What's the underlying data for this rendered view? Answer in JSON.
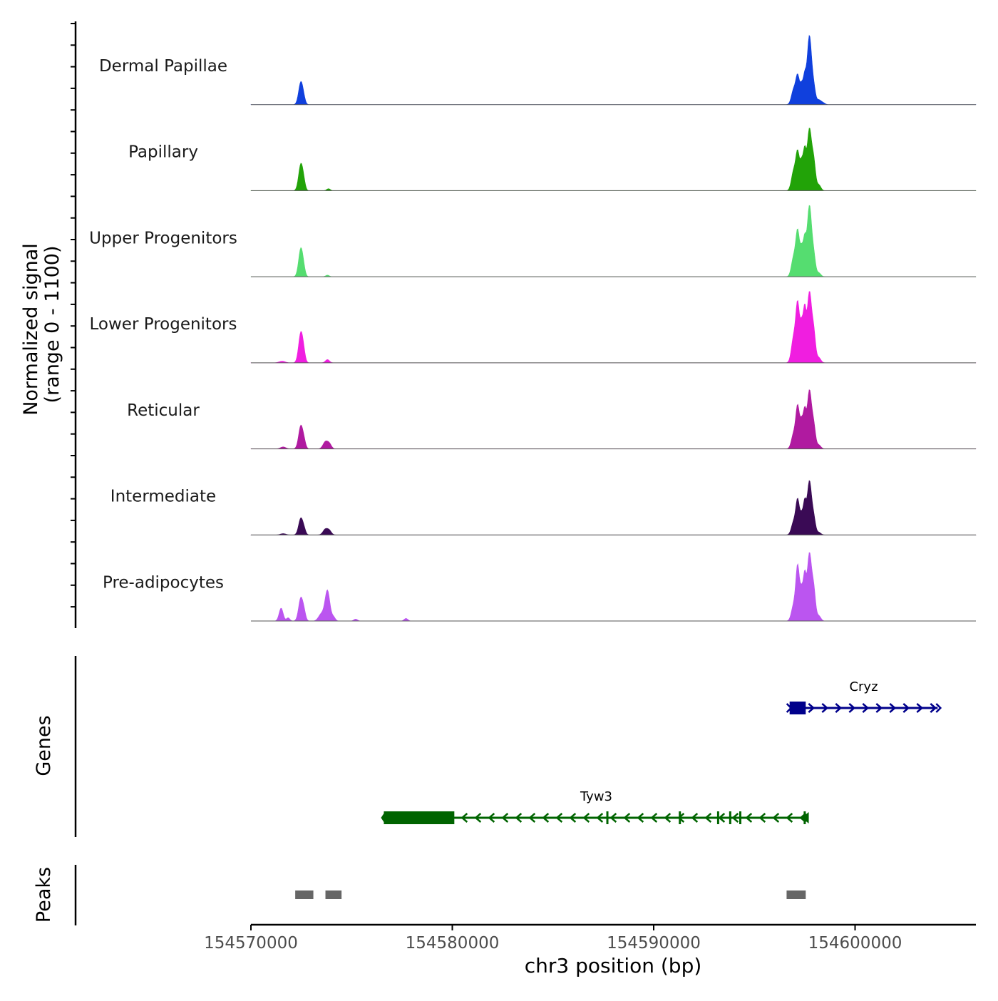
{
  "chart_data": {
    "type": "area",
    "title": "",
    "chromosome": "chr3",
    "xlabel": "chr3 position (bp)",
    "xlim": [
      154570000,
      154606000
    ],
    "xticks": [
      154570000,
      154580000,
      154590000,
      154600000
    ],
    "xtick_labels": [
      "154570000",
      "154580000",
      "154590000",
      "154600000"
    ],
    "ylabel": "Normalized signal",
    "ylabel_range": "(range 0 - 1100)",
    "ylim": [
      0,
      1100
    ],
    "series": [
      {
        "name": "Dermal Papillae",
        "color": "#1040dd",
        "peaks": [
          {
            "center": 154572480,
            "width": 110,
            "height": 350
          },
          {
            "center": 154572630,
            "width": 80,
            "height": 50
          },
          {
            "center": 154596950,
            "width": 110,
            "height": 230
          },
          {
            "center": 154597150,
            "width": 90,
            "height": 420
          },
          {
            "center": 154597350,
            "width": 80,
            "height": 290
          },
          {
            "center": 154597500,
            "width": 70,
            "height": 360
          },
          {
            "center": 154597730,
            "width": 110,
            "height": 1060
          },
          {
            "center": 154597950,
            "width": 90,
            "height": 240
          },
          {
            "center": 154598200,
            "width": 100,
            "height": 70
          },
          {
            "center": 154598400,
            "width": 100,
            "height": 30
          }
        ]
      },
      {
        "name": "Papillary",
        "color": "#22a308",
        "peaks": [
          {
            "center": 154572480,
            "width": 110,
            "height": 410
          },
          {
            "center": 154572630,
            "width": 80,
            "height": 80
          },
          {
            "center": 154573850,
            "width": 90,
            "height": 30
          },
          {
            "center": 154596950,
            "width": 110,
            "height": 300
          },
          {
            "center": 154597150,
            "width": 90,
            "height": 560
          },
          {
            "center": 154597350,
            "width": 80,
            "height": 420
          },
          {
            "center": 154597500,
            "width": 70,
            "height": 520
          },
          {
            "center": 154597730,
            "width": 110,
            "height": 950
          },
          {
            "center": 154597950,
            "width": 90,
            "height": 420
          },
          {
            "center": 154598200,
            "width": 100,
            "height": 90
          }
        ]
      },
      {
        "name": "Upper Progenitors",
        "color": "#55dd70",
        "peaks": [
          {
            "center": 154572480,
            "width": 110,
            "height": 440
          },
          {
            "center": 154572630,
            "width": 80,
            "height": 60
          },
          {
            "center": 154573800,
            "width": 90,
            "height": 25
          },
          {
            "center": 154596950,
            "width": 110,
            "height": 300
          },
          {
            "center": 154597150,
            "width": 90,
            "height": 670
          },
          {
            "center": 154597350,
            "width": 80,
            "height": 410
          },
          {
            "center": 154597500,
            "width": 70,
            "height": 480
          },
          {
            "center": 154597730,
            "width": 110,
            "height": 1100
          },
          {
            "center": 154597950,
            "width": 90,
            "height": 300
          },
          {
            "center": 154598200,
            "width": 100,
            "height": 60
          }
        ]
      },
      {
        "name": "Lower Progenitors",
        "color": "#f01ee0",
        "peaks": [
          {
            "center": 154571550,
            "width": 150,
            "height": 25
          },
          {
            "center": 154572480,
            "width": 110,
            "height": 470
          },
          {
            "center": 154572630,
            "width": 80,
            "height": 90
          },
          {
            "center": 154573800,
            "width": 100,
            "height": 50
          },
          {
            "center": 154596950,
            "width": 110,
            "height": 390
          },
          {
            "center": 154597150,
            "width": 90,
            "height": 870
          },
          {
            "center": 154597350,
            "width": 80,
            "height": 560
          },
          {
            "center": 154597500,
            "width": 70,
            "height": 700
          },
          {
            "center": 154597730,
            "width": 110,
            "height": 1090
          },
          {
            "center": 154597950,
            "width": 90,
            "height": 440
          },
          {
            "center": 154598200,
            "width": 100,
            "height": 80
          }
        ]
      },
      {
        "name": "Reticular",
        "color": "#b01aa0",
        "peaks": [
          {
            "center": 154571600,
            "width": 130,
            "height": 30
          },
          {
            "center": 154572480,
            "width": 110,
            "height": 360
          },
          {
            "center": 154572650,
            "width": 80,
            "height": 80
          },
          {
            "center": 154573700,
            "width": 120,
            "height": 110
          },
          {
            "center": 154573900,
            "width": 100,
            "height": 70
          },
          {
            "center": 154596950,
            "width": 110,
            "height": 230
          },
          {
            "center": 154597150,
            "width": 90,
            "height": 630
          },
          {
            "center": 154597350,
            "width": 80,
            "height": 400
          },
          {
            "center": 154597500,
            "width": 70,
            "height": 490
          },
          {
            "center": 154597730,
            "width": 110,
            "height": 900
          },
          {
            "center": 154597950,
            "width": 90,
            "height": 330
          },
          {
            "center": 154598200,
            "width": 100,
            "height": 60
          }
        ]
      },
      {
        "name": "Intermediate",
        "color": "#3a0a55",
        "peaks": [
          {
            "center": 154571600,
            "width": 130,
            "height": 20
          },
          {
            "center": 154572480,
            "width": 110,
            "height": 260
          },
          {
            "center": 154572650,
            "width": 80,
            "height": 60
          },
          {
            "center": 154573700,
            "width": 120,
            "height": 90
          },
          {
            "center": 154573900,
            "width": 100,
            "height": 60
          },
          {
            "center": 154596950,
            "width": 110,
            "height": 200
          },
          {
            "center": 154597150,
            "width": 90,
            "height": 520
          },
          {
            "center": 154597350,
            "width": 80,
            "height": 290
          },
          {
            "center": 154597500,
            "width": 70,
            "height": 430
          },
          {
            "center": 154597730,
            "width": 110,
            "height": 830
          },
          {
            "center": 154597950,
            "width": 90,
            "height": 240
          },
          {
            "center": 154598200,
            "width": 100,
            "height": 40
          }
        ]
      },
      {
        "name": "Pre-adipocytes",
        "color": "#bb55f0",
        "peaks": [
          {
            "center": 154571500,
            "width": 100,
            "height": 200
          },
          {
            "center": 154571850,
            "width": 80,
            "height": 50
          },
          {
            "center": 154572480,
            "width": 110,
            "height": 360
          },
          {
            "center": 154572650,
            "width": 80,
            "height": 100
          },
          {
            "center": 154573500,
            "width": 140,
            "height": 110
          },
          {
            "center": 154573800,
            "width": 120,
            "height": 470
          },
          {
            "center": 154574100,
            "width": 90,
            "height": 60
          },
          {
            "center": 154575200,
            "width": 90,
            "height": 30
          },
          {
            "center": 154577700,
            "width": 90,
            "height": 40
          },
          {
            "center": 154596950,
            "width": 110,
            "height": 240
          },
          {
            "center": 154597150,
            "width": 90,
            "height": 820
          },
          {
            "center": 154597350,
            "width": 80,
            "height": 440
          },
          {
            "center": 154597500,
            "width": 70,
            "height": 600
          },
          {
            "center": 154597730,
            "width": 110,
            "height": 1040
          },
          {
            "center": 154597950,
            "width": 90,
            "height": 450
          },
          {
            "center": 154598200,
            "width": 100,
            "height": 80
          }
        ]
      }
    ],
    "genes_label": "Genes",
    "genes": [
      {
        "name": "Cryz",
        "strand": "+",
        "start": 154596750,
        "end": 154604100,
        "thick_start": 154596750,
        "thick_end": 154597550,
        "exons": [],
        "color": "#00008b"
      },
      {
        "name": "Tyw3",
        "strand": "-",
        "start": 154576600,
        "end": 154597700,
        "thick_start": 154576600,
        "thick_end": 154580100,
        "exons": [
          154587700,
          154591300,
          154593200,
          154593800,
          154594300,
          154597500
        ],
        "color": "#006400"
      }
    ],
    "peaks_label": "Peaks",
    "peak_regions": [
      {
        "start": 154572200,
        "end": 154573100
      },
      {
        "start": 154573700,
        "end": 154574500
      },
      {
        "start": 154596600,
        "end": 154597550
      }
    ],
    "peak_color": "#666666",
    "colors": {
      "axis": "#000000",
      "baseline": "#555555",
      "tick_label": "#4d4d4d"
    }
  }
}
